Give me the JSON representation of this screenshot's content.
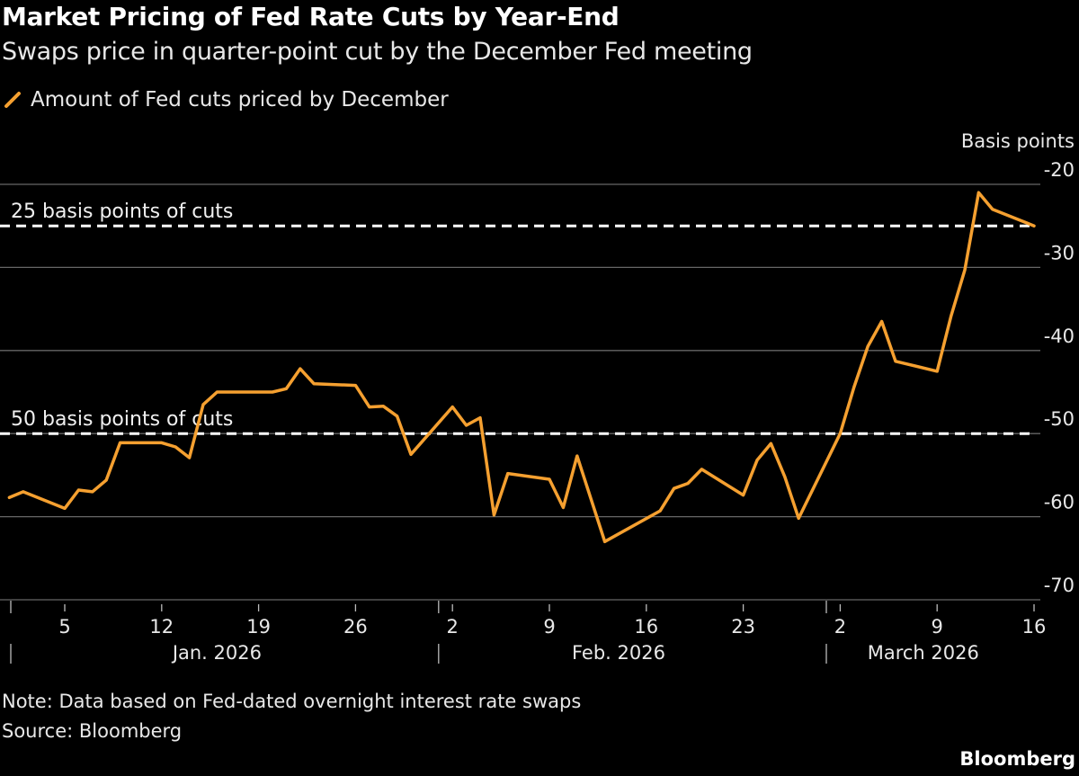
{
  "chart_data": {
    "type": "line",
    "title": "Market Pricing of Fed Rate Cuts by Year-End",
    "subtitle": "Swaps price in quarter-point cut by the December Fed meeting",
    "ylabel": "Basis points",
    "ylim": [
      -70,
      -20
    ],
    "yticks": [
      -20,
      -30,
      -40,
      -50,
      -60,
      -70
    ],
    "grid": true,
    "legend_placement": "top-left",
    "colors": {
      "series": "#f5a030",
      "reference": "#ffffff",
      "grid": "#666666",
      "background": "#000000"
    },
    "xticks": [
      {
        "date": "2026-01-05",
        "label": "5"
      },
      {
        "date": "2026-01-12",
        "label": "12"
      },
      {
        "date": "2026-01-19",
        "label": "19"
      },
      {
        "date": "2026-01-26",
        "label": "26"
      },
      {
        "date": "2026-02-02",
        "label": "2"
      },
      {
        "date": "2026-02-09",
        "label": "9"
      },
      {
        "date": "2026-02-16",
        "label": "16"
      },
      {
        "date": "2026-02-23",
        "label": "23"
      },
      {
        "date": "2026-03-02",
        "label": "2"
      },
      {
        "date": "2026-03-09",
        "label": "9"
      },
      {
        "date": "2026-03-16",
        "label": "16"
      }
    ],
    "months": [
      {
        "start": "2026-01-01",
        "label": "Jan. 2026",
        "center": "2026-01-16"
      },
      {
        "start": "2026-02-01",
        "label": "Feb. 2026",
        "center": "2026-02-14"
      },
      {
        "start": "2026-03-01",
        "label": "March 2026",
        "center": "2026-03-08"
      }
    ],
    "reference_lines": [
      {
        "value": -25,
        "label": "25 basis points of cuts"
      },
      {
        "value": -50,
        "label": "50 basis points of cuts"
      }
    ],
    "series": [
      {
        "name": "Amount of Fed cuts priced by December",
        "x": [
          "2026-01-01",
          "2026-01-02",
          "2026-01-05",
          "2026-01-06",
          "2026-01-07",
          "2026-01-08",
          "2026-01-09",
          "2026-01-12",
          "2026-01-13",
          "2026-01-14",
          "2026-01-15",
          "2026-01-16",
          "2026-01-20",
          "2026-01-21",
          "2026-01-22",
          "2026-01-23",
          "2026-01-26",
          "2026-01-27",
          "2026-01-28",
          "2026-01-29",
          "2026-01-30",
          "2026-02-02",
          "2026-02-03",
          "2026-02-04",
          "2026-02-05",
          "2026-02-06",
          "2026-02-09",
          "2026-02-10",
          "2026-02-11",
          "2026-02-13",
          "2026-02-17",
          "2026-02-18",
          "2026-02-19",
          "2026-02-20",
          "2026-02-23",
          "2026-02-24",
          "2026-02-25",
          "2026-02-26",
          "2026-02-27",
          "2026-03-02",
          "2026-03-03",
          "2026-03-04",
          "2026-03-05",
          "2026-03-06",
          "2026-03-09",
          "2026-03-10",
          "2026-03-11",
          "2026-03-12",
          "2026-03-13",
          "2026-03-16"
        ],
        "y": [
          -57.7,
          -57.0,
          -59.0,
          -56.8,
          -57.0,
          -55.6,
          -51.1,
          -51.1,
          -51.6,
          -52.9,
          -46.5,
          -45.0,
          -45.0,
          -44.6,
          -42.2,
          -44.0,
          -44.2,
          -46.8,
          -46.7,
          -47.9,
          -52.5,
          -46.8,
          -49.0,
          -48.1,
          -59.8,
          -54.8,
          -55.5,
          -58.9,
          -52.7,
          -63.0,
          -59.3,
          -56.6,
          -56.0,
          -54.3,
          -57.4,
          -53.2,
          -51.2,
          -55.2,
          -60.2,
          -50.0,
          -44.4,
          -39.5,
          -36.5,
          -41.3,
          -42.5,
          -35.9,
          -30.3,
          -21.0,
          -23.0,
          -25.0
        ]
      }
    ]
  },
  "footer": {
    "note": "Note: Data based on Fed-dated overnight interest rate swaps",
    "source": "Source: Bloomberg",
    "brand": "Bloomberg"
  }
}
